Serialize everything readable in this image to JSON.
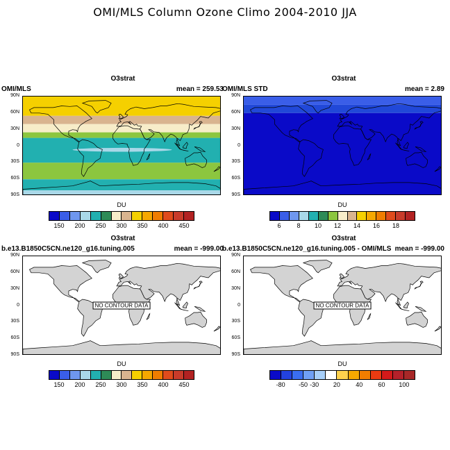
{
  "title": "OMI/MLS Column Ozone Climo 2004-2010 JJA",
  "lat_labels": [
    "90N",
    "60N",
    "30N",
    "0",
    "30S",
    "60S",
    "90S"
  ],
  "no_data_text": "NO CONTOUR DATA",
  "panels": [
    {
      "id": "p1",
      "center_title": "O3strat",
      "left_string": "OMI/MLS",
      "right_string": "mean = 259.53",
      "cb_title": "DU",
      "cb_colors": [
        "#0a0ac8",
        "#3a5ee8",
        "#6f97ef",
        "#a9d8e8",
        "#22b0b0",
        "#2e8b57",
        "#f7edc9",
        "#d9b48f",
        "#f5d000",
        "#f6a800",
        "#f07d00",
        "#e04b1c",
        "#c83b2a",
        "#b22222"
      ],
      "cb_labels": [
        "150",
        "200",
        "250",
        "300",
        "350",
        "400",
        "450"
      ],
      "cb_label_boundaries": [
        1,
        3,
        5,
        7,
        9,
        11,
        13
      ],
      "bands": [
        {
          "lat_from": 90,
          "lat_to": 55,
          "color": "#f5d000"
        },
        {
          "lat_from": 55,
          "lat_to": 40,
          "color": "#d9b48f"
        },
        {
          "lat_from": 40,
          "lat_to": 25,
          "color": "#f7edc9"
        },
        {
          "lat_from": 25,
          "lat_to": 15,
          "color": "#8cc63f"
        },
        {
          "lat_from": 15,
          "lat_to": -30,
          "color": "#22b0b0"
        },
        {
          "lat_from": -30,
          "lat_to": -60,
          "color": "#8cc63f"
        },
        {
          "lat_from": -60,
          "lat_to": -80,
          "color": "#22b0b0"
        },
        {
          "lat_from": -80,
          "lat_to": -90,
          "color": "#a9d8e8"
        }
      ],
      "highlight": {
        "lat_from": -3,
        "lat_to": -10,
        "color": "#a9d8e8"
      }
    },
    {
      "id": "p2",
      "center_title": "O3strat",
      "left_string": "OMI/MLS STD",
      "right_string": "mean =   2.89",
      "cb_title": "DU",
      "cb_colors": [
        "#0a0ac8",
        "#3a5ee8",
        "#6f97ef",
        "#a9d8e8",
        "#22b0b0",
        "#2e8b57",
        "#8cc63f",
        "#f7edc9",
        "#d9b48f",
        "#f5d000",
        "#f6a800",
        "#f07d00",
        "#e04b1c",
        "#c83b2a",
        "#b22222"
      ],
      "cb_labels": [
        "6",
        "8",
        "10",
        "12",
        "14",
        "16",
        "18"
      ],
      "cb_label_boundaries": [
        1,
        3,
        5,
        7,
        9,
        11,
        13
      ],
      "bands": [
        {
          "lat_from": 90,
          "lat_to": 75,
          "color": "#3a5ee8"
        },
        {
          "lat_from": 75,
          "lat_to": 60,
          "color": "#2148d8"
        },
        {
          "lat_from": 60,
          "lat_to": -90,
          "color": "#0a0ac8"
        }
      ],
      "highlight": null
    },
    {
      "id": "p3",
      "center_title": "O3strat",
      "left_string": "b.e13.B1850C5CN.ne120_g16.tuning.005",
      "right_string": "mean = -999.00",
      "cb_title": "DU",
      "cb_colors": [
        "#0a0ac8",
        "#3a5ee8",
        "#6f97ef",
        "#a9d8e8",
        "#22b0b0",
        "#2e8b57",
        "#f7edc9",
        "#d9b48f",
        "#f5d000",
        "#f6a800",
        "#f07d00",
        "#e04b1c",
        "#c83b2a",
        "#b22222"
      ],
      "cb_labels": [
        "150",
        "200",
        "250",
        "300",
        "350",
        "400",
        "450"
      ],
      "cb_label_boundaries": [
        1,
        3,
        5,
        7,
        9,
        11,
        13
      ],
      "bands": [],
      "highlight": null
    },
    {
      "id": "p4",
      "center_title": "O3strat",
      "left_string": "b.e13.B1850C5CN.ne120_g16.tuning.005 - OMI/MLS",
      "right_string": "mean = -999.00",
      "cb_title": "DU",
      "cb_colors": [
        "#0a0ac8",
        "#2342e0",
        "#3a6ef0",
        "#6fa0f5",
        "#a8d0fa",
        "#ffffff",
        "#ffd24d",
        "#f6a800",
        "#f07d00",
        "#e83b12",
        "#d31a1a",
        "#b5212a",
        "#a82828"
      ],
      "cb_labels": [
        "-80",
        "-50",
        "-30",
        "20",
        "40",
        "60",
        "100"
      ],
      "cb_label_boundaries": [
        1,
        3,
        4,
        6,
        8,
        10,
        12
      ],
      "bands": [],
      "highlight": null
    }
  ]
}
